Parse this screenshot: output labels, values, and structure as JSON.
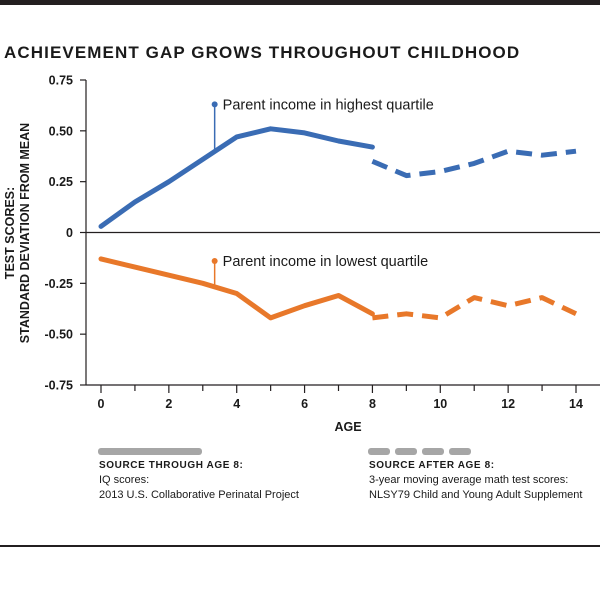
{
  "title": "ACHIEVEMENT GAP GROWS THROUGHOUT CHILDHOOD",
  "chart_data": {
    "type": "line",
    "title": "ACHIEVEMENT GAP GROWS THROUGHOUT CHILDHOOD",
    "xlabel": "AGE",
    "ylabel_lines": [
      "TEST SCORES:",
      "STANDARD DEVIATION FROM MEAN"
    ],
    "xlim": [
      0,
      14
    ],
    "ylim": [
      -0.75,
      0.75
    ],
    "x_ticks": [
      0,
      2,
      4,
      6,
      8,
      10,
      12,
      14
    ],
    "x_minor_ticks": [
      1,
      3,
      5,
      7,
      9,
      11,
      13
    ],
    "y_ticks": [
      0.75,
      0.5,
      0.25,
      0,
      -0.25,
      -0.5,
      -0.75
    ],
    "y_tick_labels": [
      "0.75",
      "0.50",
      "0.25",
      "0",
      "-0.25",
      "-0.50",
      "-0.75"
    ],
    "grid": false,
    "series": [
      {
        "name": "Parent income in highest quartile",
        "color": "#3a6cb4",
        "solid": {
          "x": [
            0,
            1,
            2,
            3,
            4,
            5,
            6,
            7,
            8
          ],
          "y": [
            0.03,
            0.15,
            0.25,
            0.36,
            0.47,
            0.51,
            0.49,
            0.45,
            0.42
          ]
        },
        "dashed": {
          "x": [
            8,
            9,
            10,
            11,
            12,
            13,
            14
          ],
          "y": [
            0.35,
            0.28,
            0.3,
            0.34,
            0.4,
            0.38,
            0.4
          ]
        },
        "annotation_x": 3.35,
        "annotation_top": 0.63
      },
      {
        "name": "Parent income in lowest quartile",
        "color": "#e8782a",
        "solid": {
          "x": [
            0,
            1,
            2,
            3,
            4,
            5,
            6,
            7,
            8
          ],
          "y": [
            -0.13,
            -0.17,
            -0.21,
            -0.25,
            -0.3,
            -0.42,
            -0.36,
            -0.31,
            -0.4
          ]
        },
        "dashed": {
          "x": [
            8,
            9,
            10,
            11,
            12,
            13,
            14
          ],
          "y": [
            -0.42,
            -0.4,
            -0.42,
            -0.32,
            -0.36,
            -0.32,
            -0.4
          ]
        },
        "annotation_x": 3.35,
        "annotation_top": -0.14
      }
    ]
  },
  "legend": {
    "solid": {
      "heading": "Source through age 8:",
      "line1": "IQ scores:",
      "line2": "2013 U.S. Collaborative Perinatal Project",
      "color": "#a6a6a6"
    },
    "dashed": {
      "heading": "Source after age 8:",
      "line1": "3-year moving average math test scores:",
      "line2": "NLSY79 Child and Young Adult Supplement",
      "color": "#a6a6a6"
    }
  }
}
